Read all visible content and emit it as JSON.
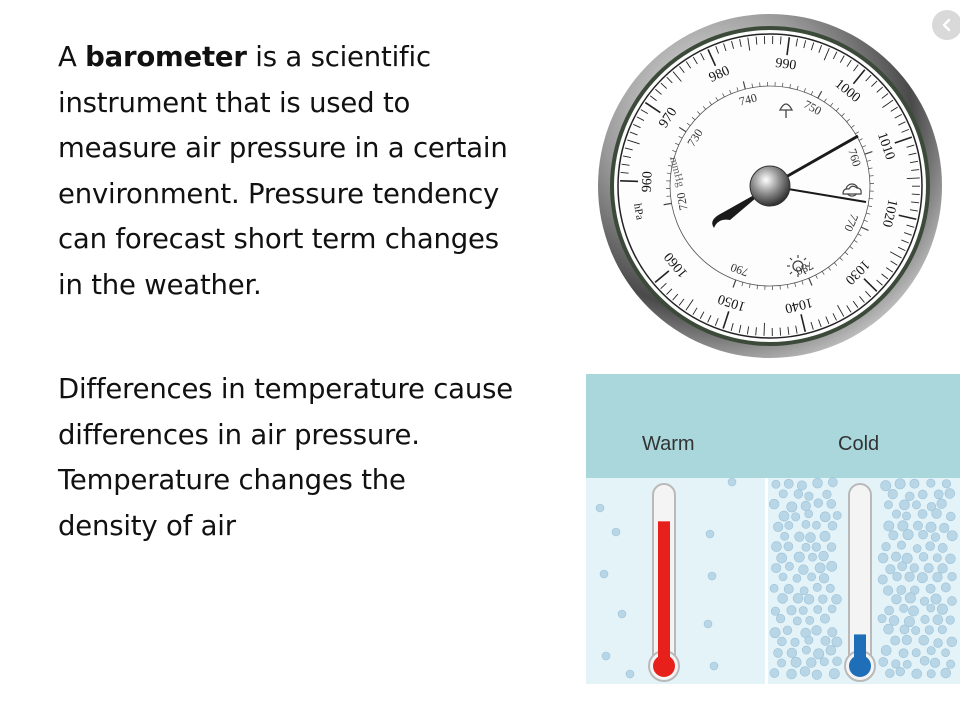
{
  "paragraph1": {
    "line1_pre": "A ",
    "line1_bold": "barometer",
    "line1_post": " is a scientific",
    "line2": "instrument that is used to",
    "line3": "measure air pressure in a certain",
    "line4": "environment. Pressure tendency",
    "line5": "can forecast short term changes",
    "line6": "in the weather."
  },
  "paragraph2": {
    "line1": "Differences in temperature cause",
    "line2": "differences in air pressure.",
    "line3": "Temperature changes  the",
    "line4": "density  of  air"
  },
  "barometer": {
    "outer_ticks": [
      "960",
      "970",
      "980",
      "990",
      "1000",
      "1010",
      "1020",
      "1030",
      "1040",
      "1050",
      "1060"
    ],
    "inner_ticks": [
      "720",
      "730",
      "740",
      "750",
      "760",
      "770",
      "780",
      "790"
    ],
    "unit_hpa": "hPa",
    "unit_mmhg": "mmHg"
  },
  "thermometers": {
    "warm_label": "Warm",
    "cold_label": "Cold",
    "warm_color": "#e8201c",
    "cold_color": "#1f6fb8",
    "warm_level": 0.82,
    "cold_level": 0.17
  },
  "nav": {
    "icon": "chevron-left-icon"
  }
}
